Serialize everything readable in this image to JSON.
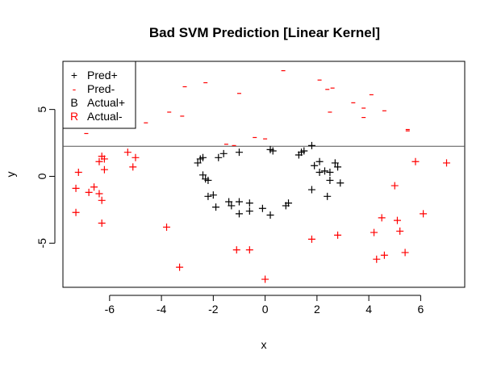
{
  "chart_data": {
    "type": "scatter",
    "title": "Bad SVM Prediction [Linear Kernel]",
    "xlabel": "x",
    "ylabel": "y",
    "xlim": [
      -7.8,
      7.7
    ],
    "ylim": [
      -8.3,
      8.6
    ],
    "xticks": [
      -6,
      -4,
      -2,
      0,
      2,
      4,
      6
    ],
    "yticks": [
      -5,
      0,
      5
    ],
    "grid": false,
    "legend_position": "top-left",
    "decision_boundary_y": 2.25,
    "colors": {
      "positive": "#000000",
      "negative": "#ff0000",
      "axes": "#000000",
      "boundary": "#555555"
    },
    "legend": [
      {
        "symbol": "+",
        "label": "Pred+",
        "color": "#000000"
      },
      {
        "symbol": "-",
        "label": "Pred-",
        "color": "#ff0000"
      },
      {
        "symbol": "B",
        "label": "Actual+",
        "color": "#000000"
      },
      {
        "symbol": "R",
        "label": "Actual-",
        "color": "#ff0000"
      }
    ],
    "series": [
      {
        "name": "Pred+",
        "symbol": "+",
        "color": "#000000",
        "points": [
          [
            -2.6,
            1.0
          ],
          [
            -2.5,
            1.3
          ],
          [
            -2.4,
            1.4
          ],
          [
            -2.4,
            0.1
          ],
          [
            -2.3,
            -0.2
          ],
          [
            -2.2,
            -0.3
          ],
          [
            -2.2,
            -1.5
          ],
          [
            -2.0,
            -1.4
          ],
          [
            -1.9,
            -2.3
          ],
          [
            -1.8,
            1.4
          ],
          [
            -1.6,
            1.7
          ],
          [
            -1.4,
            -1.9
          ],
          [
            -1.3,
            -2.2
          ],
          [
            -1.0,
            -2.8
          ],
          [
            -1.0,
            -1.9
          ],
          [
            -0.6,
            -2.6
          ],
          [
            -0.6,
            -2.0
          ],
          [
            -0.1,
            -2.4
          ],
          [
            0.2,
            -2.9
          ],
          [
            0.8,
            -2.2
          ],
          [
            0.9,
            -2.0
          ],
          [
            -1.0,
            1.8
          ],
          [
            0.2,
            2.0
          ],
          [
            0.3,
            1.9
          ],
          [
            1.3,
            1.6
          ],
          [
            1.4,
            1.8
          ],
          [
            1.5,
            1.9
          ],
          [
            1.8,
            2.3
          ],
          [
            1.9,
            0.8
          ],
          [
            2.1,
            1.1
          ],
          [
            2.1,
            0.3
          ],
          [
            2.3,
            0.4
          ],
          [
            2.5,
            0.3
          ],
          [
            2.5,
            -0.3
          ],
          [
            2.4,
            -1.5
          ],
          [
            2.7,
            1.0
          ],
          [
            2.8,
            0.7
          ],
          [
            2.9,
            -0.5
          ],
          [
            1.8,
            -1.0
          ]
        ]
      },
      {
        "name": "Pred-",
        "symbol": "-",
        "color": "#ff0000",
        "points": [
          [
            -1.5,
            2.4
          ],
          [
            -1.2,
            2.3
          ],
          [
            -0.4,
            2.9
          ],
          [
            0.0,
            2.8
          ],
          [
            0.7,
            7.9
          ],
          [
            2.1,
            7.2
          ],
          [
            2.4,
            6.5
          ],
          [
            2.6,
            6.6
          ],
          [
            2.5,
            4.8
          ],
          [
            3.4,
            5.5
          ],
          [
            3.8,
            5.1
          ],
          [
            3.8,
            4.4
          ],
          [
            4.1,
            6.1
          ],
          [
            4.6,
            4.9
          ],
          [
            5.5,
            3.5
          ],
          [
            5.5,
            3.4
          ],
          [
            -2.3,
            7.0
          ],
          [
            -3.1,
            6.7
          ],
          [
            -3.2,
            4.5
          ],
          [
            -3.7,
            4.8
          ],
          [
            -4.6,
            4.0
          ],
          [
            -1.0,
            6.2
          ],
          [
            -6.9,
            3.2
          ]
        ]
      },
      {
        "name": "Actual-",
        "symbol": "+",
        "color": "#ff0000",
        "points": [
          [
            -7.2,
            0.3
          ],
          [
            -7.3,
            -0.9
          ],
          [
            -7.3,
            -2.7
          ],
          [
            -6.8,
            -1.2
          ],
          [
            -6.6,
            -0.8
          ],
          [
            -6.4,
            -1.3
          ],
          [
            -6.3,
            -1.8
          ],
          [
            -6.4,
            1.1
          ],
          [
            -6.3,
            1.5
          ],
          [
            -6.2,
            1.3
          ],
          [
            -6.2,
            0.5
          ],
          [
            -6.3,
            -3.5
          ],
          [
            -5.3,
            1.8
          ],
          [
            -5.1,
            0.7
          ],
          [
            -5.0,
            1.4
          ],
          [
            -3.8,
            -3.8
          ],
          [
            -3.3,
            -6.8
          ],
          [
            -1.1,
            -5.5
          ],
          [
            -0.6,
            -5.5
          ],
          [
            0.0,
            -7.7
          ],
          [
            1.8,
            -4.7
          ],
          [
            2.8,
            -4.4
          ],
          [
            4.2,
            -4.2
          ],
          [
            4.3,
            -6.2
          ],
          [
            4.5,
            -3.1
          ],
          [
            4.6,
            -5.9
          ],
          [
            5.0,
            -0.7
          ],
          [
            5.1,
            -3.3
          ],
          [
            5.2,
            -4.1
          ],
          [
            5.4,
            -5.7
          ],
          [
            5.8,
            1.1
          ],
          [
            6.1,
            -2.8
          ],
          [
            7.0,
            1.0
          ]
        ]
      }
    ]
  }
}
